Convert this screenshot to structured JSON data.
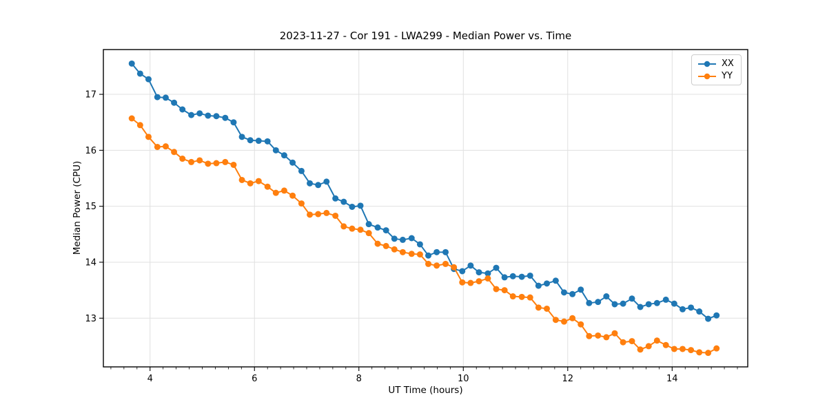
{
  "chart_data": {
    "type": "line",
    "title": "2023-11-27 - Cor 191 - LWA299 - Median Power vs. Time",
    "xlabel": "UT Time (hours)",
    "ylabel": "Median Power (CPU)",
    "xlim": [
      3.106,
      15.448
    ],
    "ylim": [
      12.13,
      17.8
    ],
    "x_ticks": [
      4,
      6,
      8,
      10,
      12,
      14
    ],
    "x_minor_step": 0.25,
    "y_ticks": [
      13,
      14,
      15,
      16,
      17
    ],
    "grid": true,
    "grid_color": "#e0e0e0",
    "legend_position": "upper right",
    "x": [
      3.65,
      3.81,
      3.97,
      4.14,
      4.3,
      4.46,
      4.62,
      4.79,
      4.95,
      5.11,
      5.27,
      5.44,
      5.6,
      5.76,
      5.92,
      6.08,
      6.25,
      6.41,
      6.57,
      6.73,
      6.9,
      7.06,
      7.22,
      7.38,
      7.55,
      7.71,
      7.87,
      8.03,
      8.19,
      8.36,
      8.52,
      8.68,
      8.84,
      9.01,
      9.17,
      9.33,
      9.49,
      9.66,
      9.82,
      9.98,
      10.14,
      10.3,
      10.47,
      10.63,
      10.79,
      10.95,
      11.12,
      11.28,
      11.44,
      11.6,
      11.77,
      11.93,
      12.09,
      12.25,
      12.41,
      12.58,
      12.74,
      12.9,
      13.06,
      13.23,
      13.39,
      13.55,
      13.71,
      13.88,
      14.04,
      14.2,
      14.36,
      14.52,
      14.69,
      14.85
    ],
    "series": [
      {
        "name": "XX",
        "color": "#1f77b4",
        "values": [
          17.55,
          17.37,
          17.27,
          16.95,
          16.94,
          16.85,
          16.73,
          16.63,
          16.66,
          16.62,
          16.61,
          16.58,
          16.5,
          16.24,
          16.18,
          16.17,
          16.16,
          16.0,
          15.91,
          15.78,
          15.63,
          15.41,
          15.38,
          15.44,
          15.14,
          15.08,
          14.99,
          15.01,
          14.68,
          14.62,
          14.57,
          14.42,
          14.4,
          14.43,
          14.32,
          14.12,
          14.18,
          14.18,
          13.88,
          13.84,
          13.94,
          13.82,
          13.8,
          13.9,
          13.73,
          13.75,
          13.74,
          13.76,
          13.58,
          13.62,
          13.67,
          13.46,
          13.43,
          13.51,
          13.27,
          13.29,
          13.39,
          13.25,
          13.26,
          13.35,
          13.2,
          13.25,
          13.27,
          13.33,
          13.26,
          13.16,
          13.19,
          13.12,
          12.99,
          13.05
        ]
      },
      {
        "name": "YY",
        "color": "#ff7f0e",
        "values": [
          16.57,
          16.45,
          16.24,
          16.06,
          16.07,
          15.97,
          15.85,
          15.79,
          15.82,
          15.76,
          15.77,
          15.79,
          15.74,
          15.47,
          15.41,
          15.45,
          15.35,
          15.24,
          15.28,
          15.19,
          15.05,
          14.85,
          14.86,
          14.88,
          14.83,
          14.64,
          14.6,
          14.58,
          14.52,
          14.33,
          14.29,
          14.23,
          14.18,
          14.15,
          14.14,
          13.97,
          13.94,
          13.97,
          13.91,
          13.64,
          13.63,
          13.66,
          13.71,
          13.52,
          13.5,
          13.39,
          13.38,
          13.37,
          13.19,
          13.17,
          12.97,
          12.94,
          13.0,
          12.89,
          12.68,
          12.69,
          12.66,
          12.73,
          12.57,
          12.59,
          12.44,
          12.5,
          12.6,
          12.52,
          12.45,
          12.45,
          12.43,
          12.39,
          12.38,
          12.46
        ]
      }
    ]
  }
}
